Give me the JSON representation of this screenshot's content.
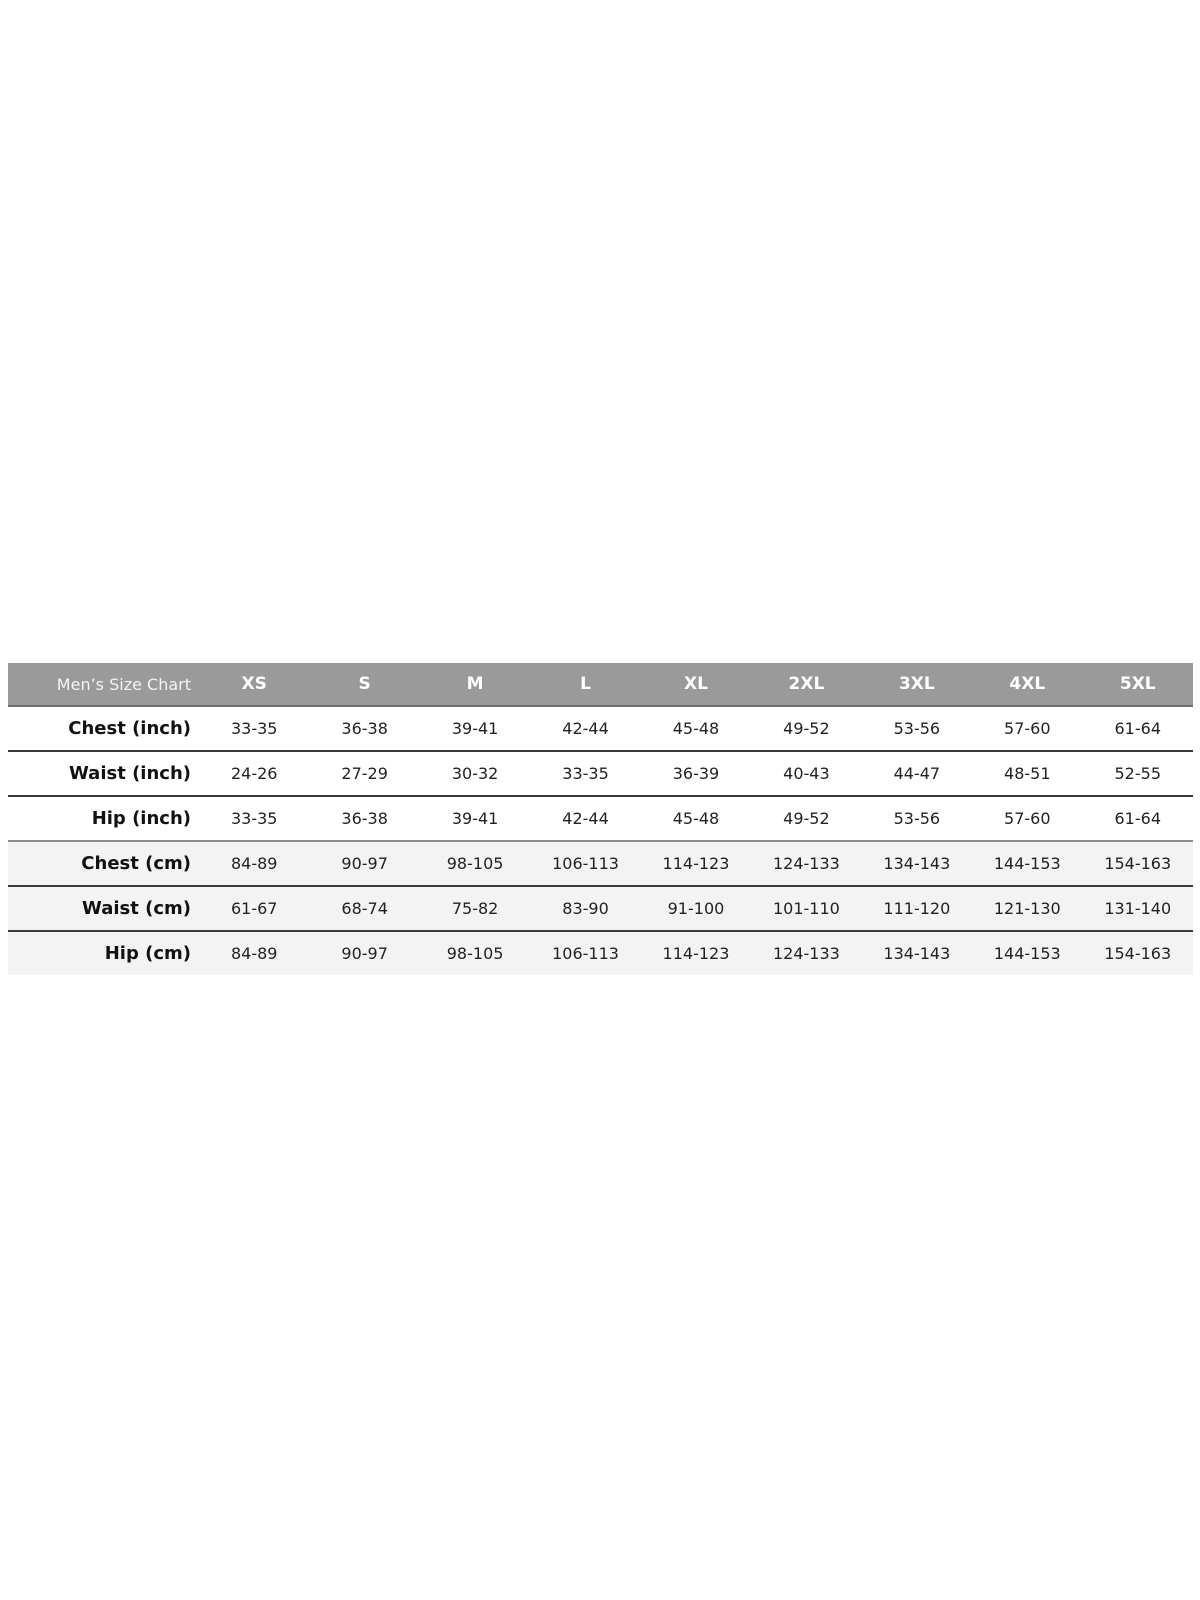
{
  "table": {
    "title": "Men’s Size Chart",
    "sizes": [
      "XS",
      "S",
      "M",
      "L",
      "XL",
      "2XL",
      "3XL",
      "4XL",
      "5XL"
    ],
    "rows": [
      {
        "label": "Chest (inch)",
        "values": [
          "33-35",
          "36-38",
          "39-41",
          "42-44",
          "45-48",
          "49-52",
          "53-56",
          "57-60",
          "61-64"
        ]
      },
      {
        "label": "Waist (inch)",
        "values": [
          "24-26",
          "27-29",
          "30-32",
          "33-35",
          "36-39",
          "40-43",
          "44-47",
          "48-51",
          "52-55"
        ]
      },
      {
        "label": "Hip (inch)",
        "values": [
          "33-35",
          "36-38",
          "39-41",
          "42-44",
          "45-48",
          "49-52",
          "53-56",
          "57-60",
          "61-64"
        ]
      },
      {
        "label": "Chest (cm)",
        "values": [
          "84-89",
          "90-97",
          "98-105",
          "106-113",
          "114-123",
          "124-133",
          "134-143",
          "144-153",
          "154-163"
        ]
      },
      {
        "label": "Waist (cm)",
        "values": [
          "61-67",
          "68-74",
          "75-82",
          "83-90",
          "91-100",
          "101-110",
          "111-120",
          "121-130",
          "131-140"
        ]
      },
      {
        "label": "Hip (cm)",
        "values": [
          "84-89",
          "90-97",
          "98-105",
          "106-113",
          "114-123",
          "124-133",
          "134-143",
          "144-153",
          "154-163"
        ]
      }
    ]
  },
  "colors": {
    "header_bg": "#9a9a9a",
    "header_text": "#ffffff",
    "cm_row_bg": "#f3f3f3",
    "row_divider": "#3a3a3a"
  }
}
